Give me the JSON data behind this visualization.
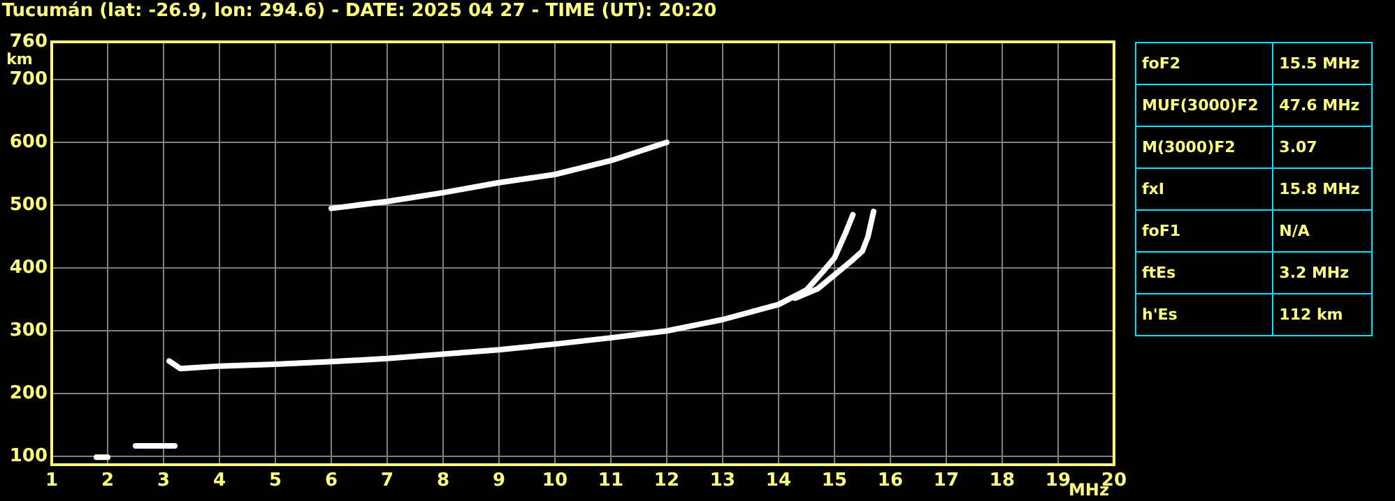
{
  "chart_data": {
    "type": "line",
    "title": "Tucumán (lat: -26.9, lon: 294.6) - DATE: 2025 04 27 - TIME (UT): 20:20",
    "xlabel": "MHz",
    "ylabel": "km",
    "xlim": [
      1,
      20
    ],
    "xticks": [
      1,
      2,
      3,
      4,
      5,
      6,
      7,
      8,
      9,
      10,
      11,
      12,
      13,
      14,
      15,
      16,
      17,
      18,
      19,
      20
    ],
    "ylim": [
      87,
      760
    ],
    "yticks": [
      100,
      200,
      300,
      400,
      500,
      600,
      700,
      760
    ],
    "grid": true,
    "legend": false,
    "marker": "none",
    "line_style": "solid",
    "series": [
      {
        "color": "#ffffff",
        "x": [
          3.1,
          3.3,
          4,
          5,
          6,
          7,
          8,
          9,
          10,
          11,
          12,
          13,
          14,
          14.5,
          14.8,
          15.0,
          15.2,
          15.33
        ],
        "values": [
          252,
          240,
          244,
          247,
          251,
          256,
          263,
          270,
          279,
          289,
          300,
          318,
          342,
          365,
          395,
          416,
          456,
          485
        ]
      },
      {
        "color": "#ffffff",
        "x": [
          14.3,
          14.7,
          15.0,
          15.3,
          15.5,
          15.6,
          15.7
        ],
        "values": [
          352,
          367,
          389,
          411,
          427,
          450,
          490
        ]
      },
      {
        "color": "#ffffff",
        "x": [
          6,
          7,
          8,
          9,
          10,
          11,
          12
        ],
        "values": [
          495,
          506,
          520,
          536,
          549,
          571,
          600
        ]
      },
      {
        "color": "#ffffff",
        "x": [
          2.5,
          3.2
        ],
        "values": [
          117,
          117
        ]
      },
      {
        "color": "#ffffff",
        "x": [
          1.8,
          2.0
        ],
        "values": [
          99,
          99
        ]
      }
    ],
    "annotations": [
      "foF2",
      "15.5 MHz",
      "MUF(3000)F2",
      "47.6 MHz",
      "M(3000)F2",
      "3.07",
      "fxI",
      "15.8 MHz",
      "foF1",
      "N/A",
      "ftEs",
      "3.2 MHz",
      "h'Es",
      "112 km"
    ]
  }
}
